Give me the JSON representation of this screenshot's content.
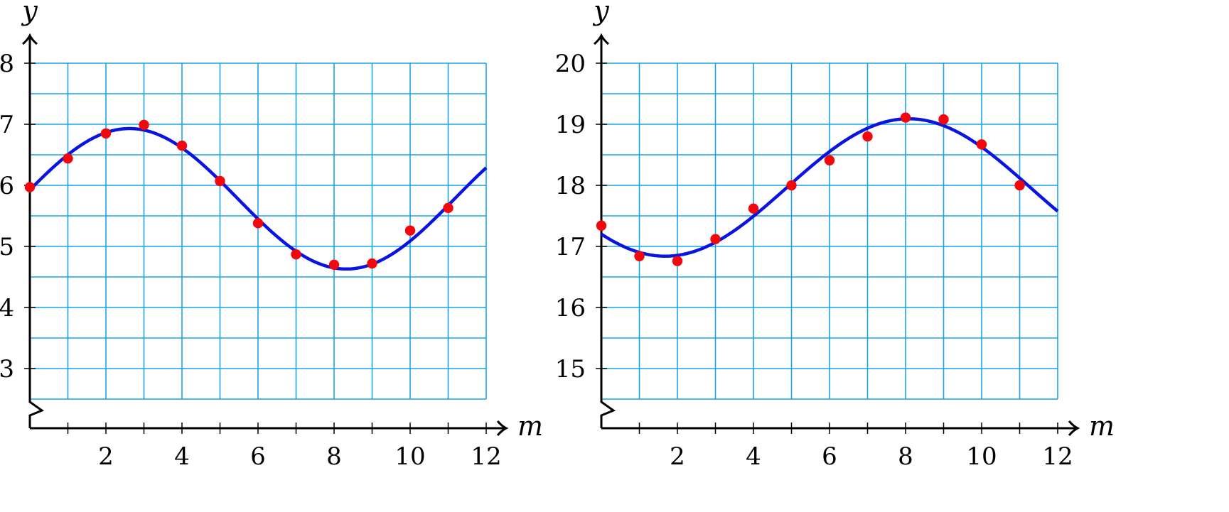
{
  "chart_data": [
    {
      "type": "scatter",
      "xlabel": "m",
      "ylabel": "y",
      "xlim": [
        0,
        12
      ],
      "ylim": [
        2.5,
        8
      ],
      "y_axis_break": true,
      "grid": true,
      "grid_x_step": 1,
      "grid_y_step": 0.5,
      "x_tick_labels": [
        "2",
        "4",
        "6",
        "8",
        "10",
        "12"
      ],
      "x_tick_values": [
        2,
        4,
        6,
        8,
        10,
        12
      ],
      "y_tick_labels": [
        "3",
        "4",
        "5",
        "6",
        "7",
        "8"
      ],
      "y_tick_values": [
        3,
        4,
        5,
        6,
        7,
        8
      ],
      "series": [
        {
          "kind": "points",
          "color": "#f2070d",
          "x": [
            0,
            1,
            2,
            3,
            4,
            5,
            6,
            7,
            8,
            9,
            10,
            11
          ],
          "y": [
            5.97,
            6.44,
            6.85,
            6.99,
            6.65,
            6.07,
            5.38,
            4.87,
            4.7,
            4.72,
            5.26,
            5.63
          ]
        },
        {
          "kind": "sine-fit",
          "color": "#0a14e0",
          "amplitude": 1.15,
          "period": 11.4,
          "phase_shift": -0.23,
          "midline": 5.78
        }
      ]
    },
    {
      "type": "scatter",
      "xlabel": "m",
      "ylabel": "y",
      "xlim": [
        0,
        12
      ],
      "ylim": [
        14.5,
        20
      ],
      "y_axis_break": true,
      "grid": true,
      "grid_x_step": 1,
      "grid_y_step": 0.5,
      "x_tick_labels": [
        "2",
        "4",
        "6",
        "8",
        "10",
        "12"
      ],
      "x_tick_values": [
        2,
        4,
        6,
        8,
        10,
        12
      ],
      "y_tick_labels": [
        "15",
        "16",
        "17",
        "18",
        "19",
        "20"
      ],
      "y_tick_values": [
        15,
        16,
        17,
        18,
        19,
        20
      ],
      "series": [
        {
          "kind": "points",
          "color": "#f2070d",
          "x": [
            0,
            1,
            2,
            3,
            4,
            5,
            6,
            7,
            8,
            9,
            10,
            11
          ],
          "y": [
            17.34,
            16.84,
            16.76,
            17.12,
            17.62,
            18.0,
            18.41,
            18.8,
            19.11,
            19.08,
            18.67,
            18.0
          ]
        },
        {
          "kind": "sine-fit",
          "color": "#0a14e0",
          "amplitude": 1.125,
          "period": 12.8,
          "phase_shift": 4.88,
          "midline": 17.965
        }
      ]
    }
  ]
}
